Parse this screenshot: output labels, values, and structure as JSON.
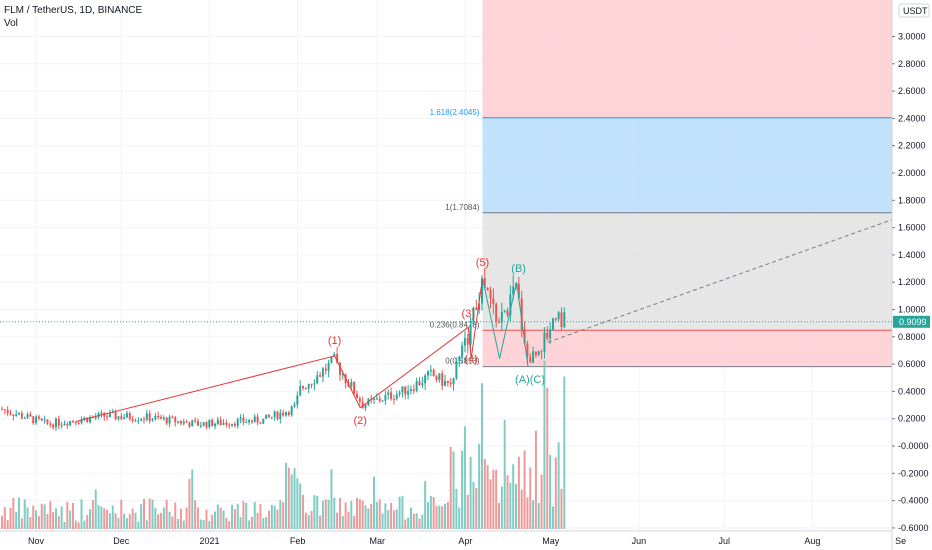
{
  "header": {
    "title": "FLM / TetherUS, 1D, BINANCE",
    "vol_label": "Vol"
  },
  "colors": {
    "up": "#26a69a",
    "down": "#ef5350",
    "vol_up": "#80cbc4",
    "vol_down": "#ef9a9a",
    "grid": "#f0f3fa",
    "wave": "#e53935",
    "wave_abc": "#26a69a",
    "fib_blue": "#2196f3",
    "price_label_bg": "#26a69a"
  },
  "price_axis": {
    "currency": "USDT",
    "ticks": [
      "3.0000",
      "2.8000",
      "2.6000",
      "2.4000",
      "2.2000",
      "2.0000",
      "1.8000",
      "1.6000",
      "1.4000",
      "1.2000",
      "1.0000",
      "0.8000",
      "0.6000",
      "0.4000",
      "0.2000",
      "-0.0000",
      "-0.2000",
      "-0.4000",
      "-0.6000"
    ],
    "current_price": "0.9099"
  },
  "time_axis": {
    "ticks": [
      "Nov",
      "Dec",
      "2021",
      "Feb",
      "Mar",
      "Apr",
      "May",
      "Jun",
      "Jul",
      "Aug",
      "Se"
    ]
  },
  "fib_levels": [
    {
      "label": "1.618(2.4045)",
      "value": 2.4045
    },
    {
      "label": "1(1.7084)",
      "value": 1.7084
    },
    {
      "label": "0.236(0.8478)",
      "value": 0.8478
    },
    {
      "label": "0(0.5813)",
      "value": 0.5813
    }
  ],
  "wave_labels": [
    "(1)",
    "(2)",
    "(3)",
    "(4)",
    "(5)",
    "(A)(C)",
    "(B)"
  ],
  "chart_data": {
    "type": "candlestick",
    "title": "FLM / TetherUS, 1D, BINANCE",
    "y_range": [
      -0.6,
      3.1
    ],
    "x_range": [
      "2020-11-01",
      "2021-09-01"
    ],
    "price_path_keypoints": [
      {
        "date": "2020-10-20",
        "close": 0.27
      },
      {
        "date": "2020-11-05",
        "close": 0.16
      },
      {
        "date": "2020-11-25",
        "close": 0.22
      },
      {
        "date": "2020-12-10",
        "close": 0.21
      },
      {
        "date": "2020-12-28",
        "close": 0.16
      },
      {
        "date": "2021-01-20",
        "close": 0.19
      },
      {
        "date": "2021-01-31",
        "close": 0.28
      },
      {
        "date": "2021-02-02",
        "close": 0.42
      },
      {
        "date": "2021-02-14",
        "close": 0.62
      },
      {
        "date": "2021-02-24",
        "close": 0.3
      },
      {
        "date": "2021-03-10",
        "close": 0.4
      },
      {
        "date": "2021-03-20",
        "close": 0.52
      },
      {
        "date": "2021-03-26",
        "close": 0.45
      },
      {
        "date": "2021-04-01",
        "close": 0.75
      },
      {
        "date": "2021-04-07",
        "close": 1.18
      },
      {
        "date": "2021-04-13",
        "close": 0.9
      },
      {
        "date": "2021-04-19",
        "close": 1.15
      },
      {
        "date": "2021-04-23",
        "close": 0.62
      },
      {
        "date": "2021-04-29",
        "close": 0.78
      },
      {
        "date": "2021-05-03",
        "close": 1.0
      },
      {
        "date": "2021-05-06",
        "close": 0.91
      }
    ],
    "elliott_waves": [
      {
        "label": "(1)",
        "date": "2021-02-14",
        "price": 0.66
      },
      {
        "label": "(2)",
        "date": "2021-02-23",
        "price": 0.28
      },
      {
        "label": "(3)",
        "date": "2021-04-02",
        "price": 0.87
      },
      {
        "label": "(4)",
        "date": "2021-04-03",
        "price": 0.64
      },
      {
        "label": "(5)",
        "date": "2021-04-07",
        "price": 1.23
      },
      {
        "label": "(A)(C)",
        "date": "2021-04-23",
        "price": 0.58
      },
      {
        "label": "(B)",
        "date": "2021-04-19",
        "price": 1.2
      }
    ],
    "trend_line": {
      "from": {
        "date": "2021-04-30",
        "price": 0.76
      },
      "to": {
        "date": "2021-09-01",
        "price": 1.68
      }
    }
  }
}
